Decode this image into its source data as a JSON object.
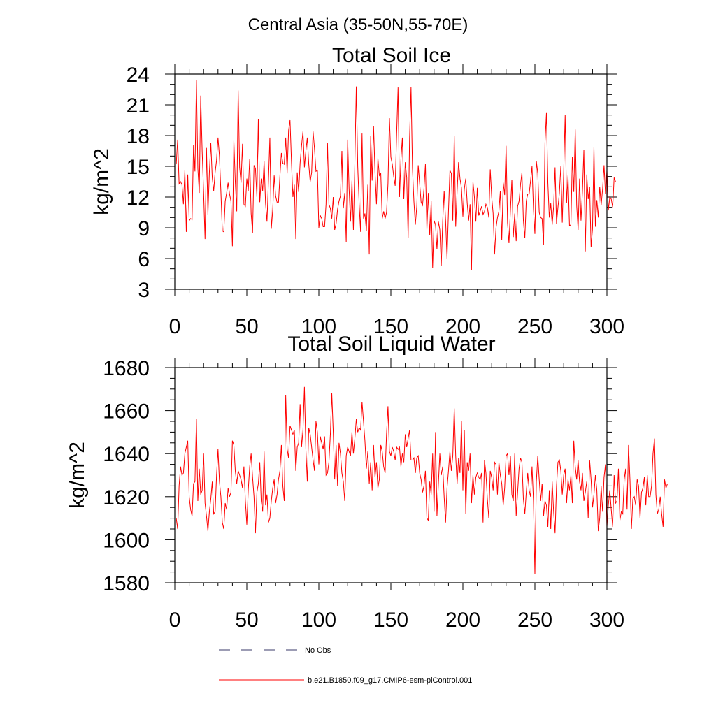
{
  "figure": {
    "suptitle": "Central Asia (35-50N,55-70E)",
    "line_color": "#ff0000",
    "obs_color": "#3a3a6a"
  },
  "legend": {
    "no_obs_label": "No Obs",
    "model_label": "b.e21.B1850.f09_g17.CMIP6-esm-piControl.001"
  },
  "chart_data": [
    {
      "type": "line",
      "title": "Total Soil Ice",
      "xlabel": "",
      "ylabel": "kg/m^2",
      "xlim": [
        0,
        300
      ],
      "ylim": [
        3,
        24
      ],
      "xticks": [
        0,
        50,
        100,
        150,
        200,
        250,
        300
      ],
      "yticks": [
        3,
        6,
        9,
        12,
        15,
        18,
        21,
        24
      ],
      "x_start": 1,
      "series": [
        {
          "name": "b.e21.B1850.f09_g17.CMIP6-esm-piControl.001",
          "values": [
            15.2,
            17.6,
            13.3,
            13.5,
            13.2,
            11.3,
            14.6,
            8.6,
            14.2,
            9.7,
            9.9,
            9.8,
            17.1,
            14.5,
            23.4,
            14.8,
            12.4,
            21.9,
            16.5,
            12.5,
            7.9,
            16.8,
            10.3,
            14.4,
            17.3,
            13.9,
            12.6,
            14.4,
            15.6,
            17.8,
            16.0,
            12.5,
            8.7,
            8.6,
            11.6,
            12.4,
            13.4,
            12.3,
            11.6,
            7.2,
            17.5,
            13.5,
            10.6,
            22.4,
            14.9,
            13.4,
            17.2,
            11.3,
            11.1,
            13.8,
            12.6,
            15.7,
            10.4,
            8.5,
            15.1,
            14.8,
            12.0,
            19.6,
            11.5,
            13.8,
            12.6,
            15.5,
            11.4,
            9.6,
            13.5,
            17.8,
            8.9,
            10.8,
            14.1,
            12.1,
            11.5,
            11.5,
            14.1,
            16.3,
            15.3,
            15.2,
            17.8,
            14.3,
            18.5,
            19.5,
            15.4,
            12.0,
            13.2,
            7.9,
            14.4,
            12.5,
            15.3,
            17.0,
            18.4,
            14.9,
            16.5,
            17.8,
            15.2,
            13.5,
            14.4,
            18.4,
            16.7,
            14.5,
            14.6,
            9.0,
            10.2,
            9.9,
            9.1,
            9.1,
            11.3,
            17.3,
            11.3,
            10.9,
            9.9,
            12.0,
            8.8,
            9.4,
            10.8,
            11.6,
            12.1,
            16.5,
            10.9,
            12.4,
            7.6,
            17.6,
            12.8,
            9.6,
            13.6,
            8.8,
            15.3,
            22.8,
            15.0,
            11.3,
            8.6,
            18.2,
            9.9,
            10.4,
            8.7,
            13.2,
            6.4,
            18.0,
            13.6,
            18.9,
            14.4,
            11.3,
            15.8,
            14.1,
            14.3,
            9.9,
            10.6,
            9.9,
            10.5,
            13.3,
            19.7,
            15.9,
            15.2,
            14.0,
            13.1,
            18.1,
            22.7,
            12.0,
            15.7,
            17.8,
            11.8,
            15.4,
            13.9,
            8.0,
            17.8,
            22.7,
            14.8,
            11.6,
            9.3,
            11.1,
            15.1,
            13.3,
            11.5,
            11.2,
            12.8,
            15.2,
            8.8,
            12.4,
            8.3,
            11.6,
            5.1,
            9.7,
            9.3,
            6.9,
            9.6,
            8.8,
            5.3,
            9.7,
            12.6,
            9.7,
            6.0,
            10.6,
            14.6,
            14.3,
            9.7,
            18.0,
            9.1,
            12.6,
            15.4,
            13.8,
            12.9,
            10.1,
            12.8,
            13.8,
            11.4,
            9.7,
            11.3,
            4.9,
            13.5,
            12.0,
            9.6,
            12.9,
            10.2,
            10.6,
            11.1,
            10.3,
            10.6,
            11.3,
            11.0,
            10.0,
            14.7,
            12.0,
            10.4,
            6.4,
            9.0,
            10.0,
            10.6,
            12.6,
            7.8,
            13.4,
            12.2,
            17.0,
            9.5,
            7.5,
            10.7,
            13.7,
            8.1,
            10.4,
            7.7,
            11.1,
            11.6,
            13.2,
            14.4,
            9.7,
            8.0,
            11.6,
            12.3,
            12.3,
            13.6,
            15.0,
            10.8,
            8.4,
            15.5,
            14.3,
            10.5,
            10.0,
            9.9,
            7.3,
            17.3,
            20.2,
            13.4,
            10.0,
            11.4,
            9.3,
            11.1,
            14.9,
            9.4,
            11.0,
            12.4,
            15.0,
            9.5,
            14.5,
            20.0,
            11.4,
            14.1,
            9.2,
            9.3,
            15.9,
            12.5,
            18.6,
            11.2,
            8.8,
            13.8,
            9.7,
            12.5,
            16.6,
            6.7,
            14.2,
            11.8,
            13.0,
            7.1,
            8.9,
            16.9,
            9.1,
            11.7,
            10.0,
            13.0,
            11.2,
            12.8,
            15.1,
            12.3,
            14.6,
            10.7,
            12.0,
            11.8,
            11.0,
            13.9,
            13.5
          ]
        }
      ]
    },
    {
      "type": "line",
      "title": "Total Soil Liquid Water",
      "xlabel": "",
      "ylabel": "kg/m^2",
      "xlim": [
        0,
        300
      ],
      "ylim": [
        1580,
        1680
      ],
      "xticks": [
        0,
        50,
        100,
        150,
        200,
        250,
        300
      ],
      "yticks": [
        1580,
        1600,
        1620,
        1640,
        1660,
        1680
      ],
      "x_start": 1,
      "series": [
        {
          "name": "b.e21.B1850.f09_g17.CMIP6-esm-piControl.001",
          "values": [
            1610,
            1605,
            1625,
            1634,
            1630,
            1631,
            1640,
            1643,
            1646,
            1620,
            1614,
            1611,
            1626,
            1627,
            1656,
            1618,
            1633,
            1621,
            1623,
            1640,
            1617,
            1611,
            1604,
            1613,
            1619,
            1627,
            1612,
            1613,
            1630,
            1642,
            1627,
            1620,
            1608,
            1605,
            1617,
            1614,
            1624,
            1620,
            1622,
            1646,
            1644,
            1632,
            1626,
            1632,
            1630,
            1628,
            1624,
            1634,
            1618,
            1607,
            1623,
            1634,
            1640,
            1629,
            1620,
            1603,
            1622,
            1626,
            1636,
            1618,
            1613,
            1641,
            1616,
            1621,
            1608,
            1610,
            1618,
            1624,
            1628,
            1617,
            1621,
            1628,
            1632,
            1644,
            1625,
            1618,
            1667,
            1642,
            1638,
            1653,
            1651,
            1649,
            1651,
            1632,
            1643,
            1645,
            1663,
            1643,
            1651,
            1671,
            1642,
            1627,
            1652,
            1649,
            1643,
            1637,
            1632,
            1655,
            1650,
            1635,
            1648,
            1645,
            1642,
            1648,
            1630,
            1631,
            1636,
            1649,
            1668,
            1650,
            1628,
            1644,
            1625,
            1645,
            1640,
            1631,
            1627,
            1618,
            1639,
            1643,
            1641,
            1639,
            1650,
            1640,
            1647,
            1656,
            1650,
            1652,
            1651,
            1664,
            1655,
            1646,
            1633,
            1641,
            1626,
            1636,
            1623,
            1644,
            1629,
            1636,
            1624,
            1628,
            1644,
            1641,
            1634,
            1631,
            1649,
            1662,
            1641,
            1639,
            1643,
            1641,
            1637,
            1643,
            1642,
            1643,
            1634,
            1640,
            1636,
            1649,
            1643,
            1647,
            1651,
            1637,
            1637,
            1638,
            1631,
            1638,
            1639,
            1631,
            1628,
            1622,
            1625,
            1632,
            1610,
            1609,
            1627,
            1621,
            1640,
            1613,
            1650,
            1611,
            1626,
            1640,
            1630,
            1634,
            1620,
            1608,
            1624,
            1632,
            1641,
            1632,
            1639,
            1661,
            1639,
            1626,
            1638,
            1631,
            1655,
            1623,
            1651,
            1612,
            1636,
            1632,
            1640,
            1617,
            1630,
            1621,
            1629,
            1631,
            1629,
            1628,
            1631,
            1608,
            1637,
            1631,
            1619,
            1610,
            1632,
            1629,
            1623,
            1636,
            1635,
            1621,
            1636,
            1630,
            1626,
            1616,
            1624,
            1639,
            1640,
            1630,
            1639,
            1621,
            1618,
            1640,
            1611,
            1622,
            1633,
            1638,
            1636,
            1619,
            1612,
            1622,
            1631,
            1623,
            1620,
            1634,
            1618,
            1584,
            1627,
            1639,
            1628,
            1618,
            1626,
            1611,
            1618,
            1616,
            1606,
            1623,
            1605,
            1627,
            1613,
            1603,
            1625,
            1636,
            1637,
            1632,
            1621,
            1630,
            1633,
            1617,
            1628,
            1623,
            1630,
            1617,
            1646,
            1634,
            1628,
            1637,
            1627,
            1623,
            1631,
            1618,
            1622,
            1627,
            1610,
            1637,
            1628,
            1615,
            1621,
            1630,
            1623,
            1604,
            1610,
            1625,
            1613,
            1629,
            1635,
            1606,
            1616,
            1623,
            1614,
            1606,
            1630,
            1617,
            1618,
            1633,
            1609,
            1613,
            1612,
            1628,
            1633,
            1614,
            1644,
            1628,
            1605,
            1619,
            1620,
            1616,
            1628,
            1625,
            1610,
            1622,
            1624,
            1629,
            1616,
            1630,
            1620,
            1620,
            1625,
            1640,
            1647,
            1621,
            1612,
            1614,
            1620,
            1612,
            1606,
            1628,
            1624,
            1626
          ]
        }
      ]
    }
  ]
}
